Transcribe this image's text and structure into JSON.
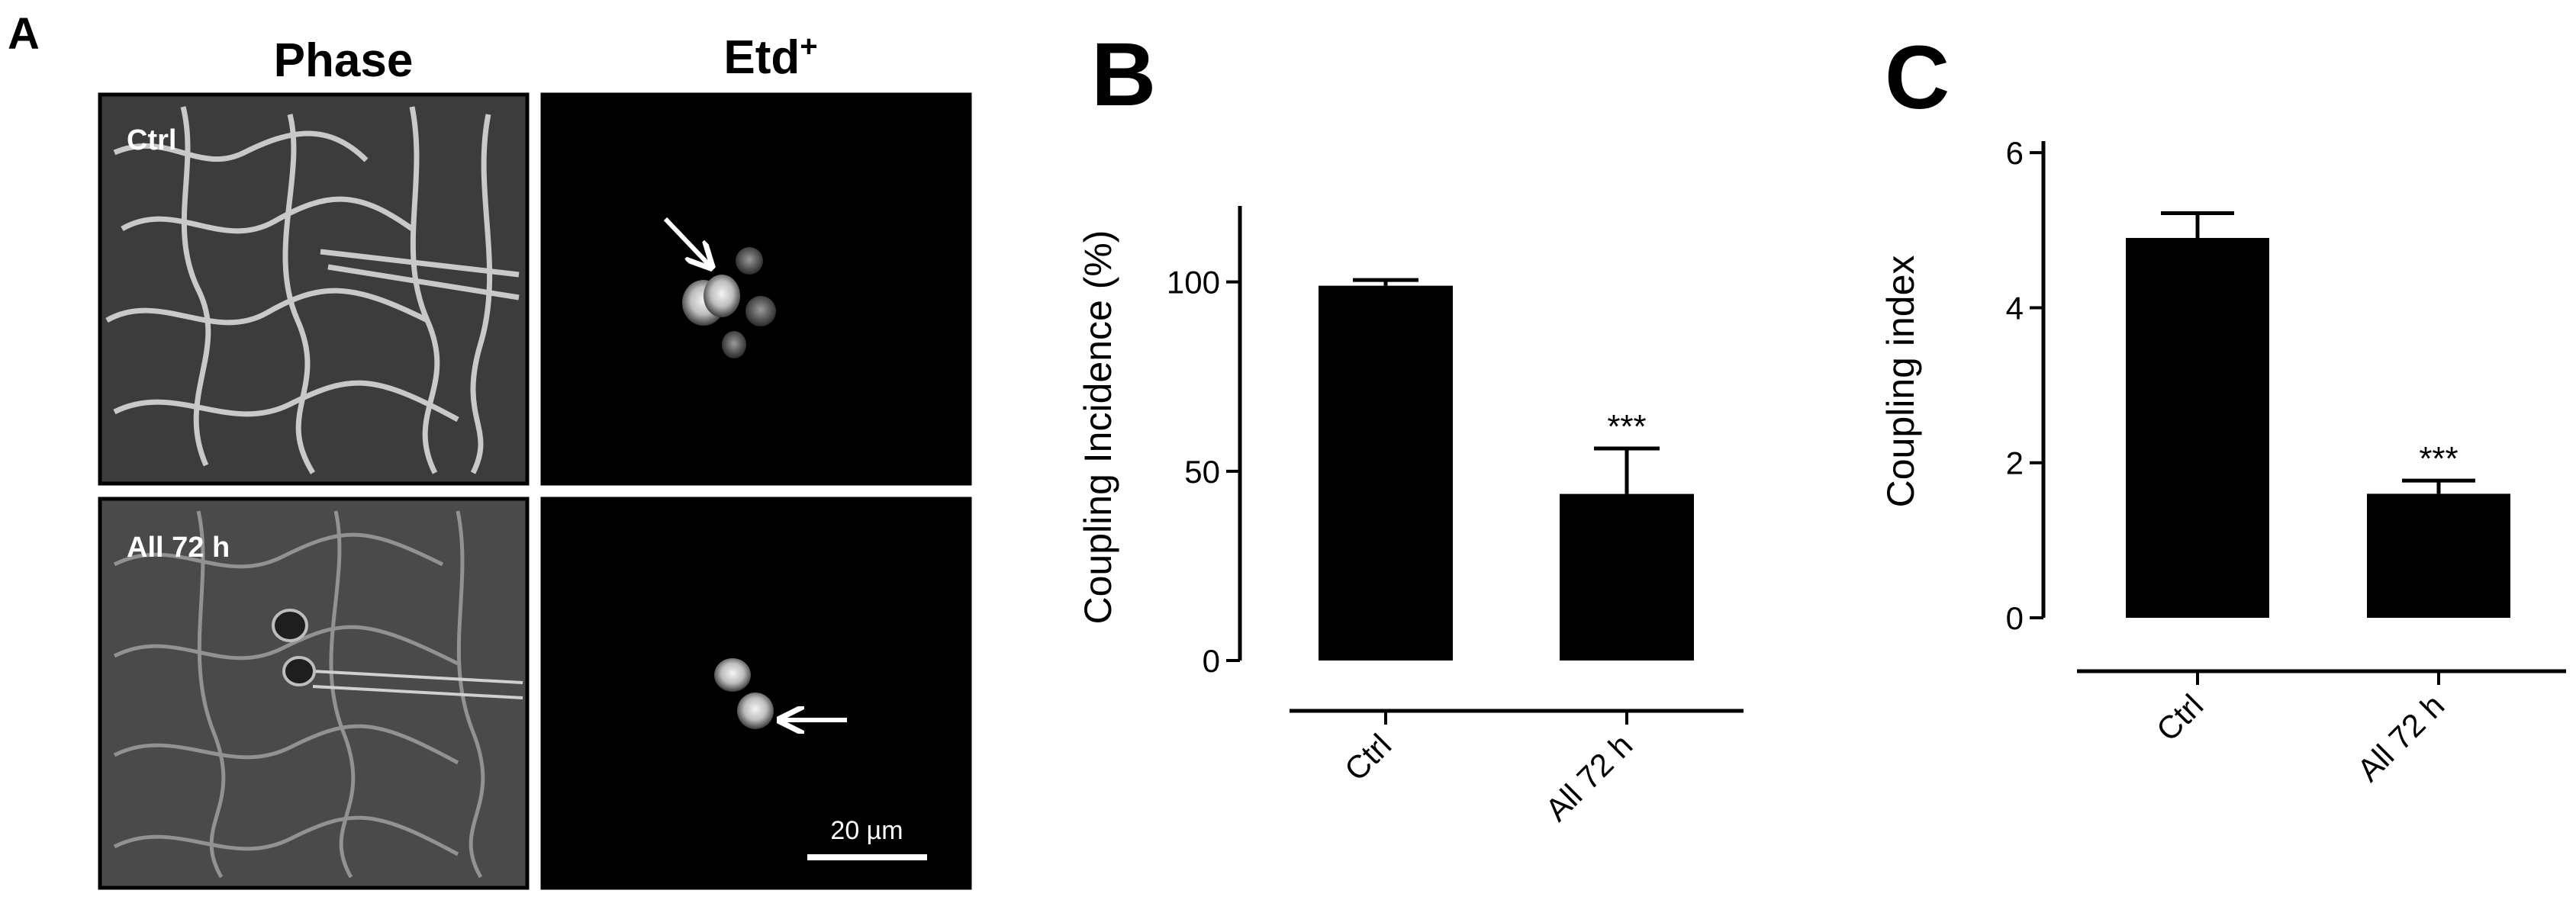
{
  "panel_a": {
    "letter": "A",
    "column_headers": [
      "Phase",
      "Etd+"
    ],
    "etd_base": "Etd",
    "etd_sup": "+",
    "row_labels": [
      "Ctrl",
      "All 72 h"
    ],
    "scale_bar_label": "20 µm"
  },
  "chart_data": [
    {
      "panel": "B",
      "type": "bar",
      "categories": [
        "Ctrl",
        "All 72 h"
      ],
      "values": [
        99,
        44
      ],
      "errors": [
        1.5,
        12
      ],
      "annotations": [
        "",
        "***"
      ],
      "ylabel": "Coupling Incidence (%)",
      "xlabel": "",
      "ylim": [
        0,
        110
      ],
      "yticks": [
        0,
        50,
        100
      ],
      "color": "#000000"
    },
    {
      "panel": "C",
      "type": "bar",
      "categories": [
        "Ctrl",
        "All 72 h"
      ],
      "values": [
        4.9,
        1.6
      ],
      "errors": [
        0.32,
        0.17
      ],
      "annotations": [
        "",
        "***"
      ],
      "ylabel": "Coupling index",
      "xlabel": "",
      "ylim": [
        0,
        6.1
      ],
      "yticks": [
        0,
        2,
        4,
        6
      ],
      "color": "#000000"
    }
  ]
}
